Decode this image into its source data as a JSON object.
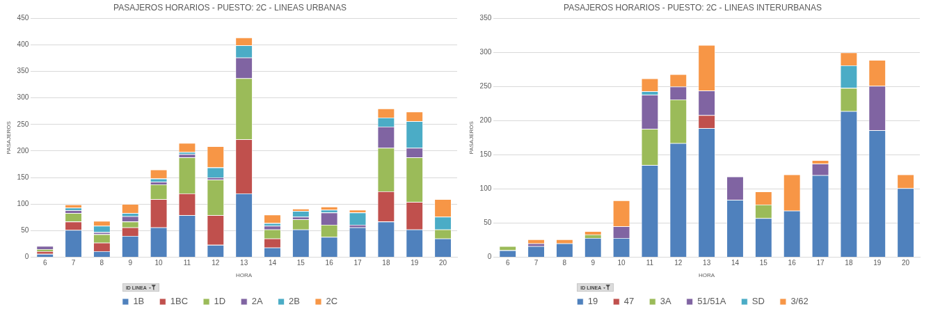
{
  "chart_data": [
    {
      "type": "bar",
      "stacked": true,
      "title": "PASAJEROS HORARIOS - PUESTO: 2C - LINEAS URBANAS",
      "xlabel": "HORA",
      "ylabel": "PASAJEROS",
      "legend_title": "ID LINEA",
      "legend": "bottom",
      "grid": "y",
      "ylim": [
        0,
        450
      ],
      "yticks": [
        0,
        50,
        100,
        150,
        200,
        250,
        300,
        350,
        400,
        450
      ],
      "categories": [
        "6",
        "7",
        "8",
        "9",
        "10",
        "11",
        "12",
        "13",
        "14",
        "15",
        "16",
        "17",
        "18",
        "19",
        "20"
      ],
      "series": [
        {
          "name": "1B",
          "color": "#4f81bd",
          "values": [
            6,
            51,
            11,
            40,
            56,
            79,
            23,
            120,
            18,
            52,
            38,
            56,
            67,
            52,
            35
          ]
        },
        {
          "name": "1BC",
          "color": "#c0504d",
          "values": [
            5,
            16,
            16,
            16,
            53,
            41,
            56,
            102,
            17,
            0,
            0,
            0,
            57,
            52,
            0
          ]
        },
        {
          "name": "1D",
          "color": "#9bbb59",
          "values": [
            4,
            16,
            16,
            11,
            28,
            68,
            67,
            115,
            17,
            19,
            23,
            0,
            82,
            84,
            17
          ]
        },
        {
          "name": "2A",
          "color": "#8064a2",
          "values": [
            6,
            5,
            4,
            10,
            5,
            6,
            4,
            39,
            7,
            5,
            23,
            5,
            40,
            18,
            0
          ]
        },
        {
          "name": "2B",
          "color": "#4bacc6",
          "values": [
            0,
            5,
            12,
            6,
            6,
            4,
            19,
            23,
            5,
            11,
            5,
            23,
            17,
            50,
            24
          ]
        },
        {
          "name": "2C",
          "color": "#f79646",
          "values": [
            0,
            6,
            9,
            17,
            17,
            17,
            40,
            15,
            16,
            4,
            6,
            5,
            17,
            18,
            33
          ]
        }
      ]
    },
    {
      "type": "bar",
      "stacked": true,
      "title": "PASAJEROS HORARIOS - PUESTO: 2C - LINEAS INTERURBANAS",
      "xlabel": "HORA",
      "ylabel": "PASAJEROS",
      "legend_title": "ID LINEA",
      "legend": "bottom",
      "grid": "y",
      "ylim": [
        0,
        350
      ],
      "yticks": [
        0,
        50,
        100,
        150,
        200,
        250,
        300,
        350
      ],
      "categories": [
        "6",
        "7",
        "8",
        "9",
        "10",
        "11",
        "12",
        "13",
        "14",
        "15",
        "16",
        "17",
        "18",
        "19",
        "20"
      ],
      "series": [
        {
          "name": "19",
          "color": "#4f81bd",
          "values": [
            10,
            16,
            20,
            28,
            28,
            135,
            167,
            189,
            84,
            57,
            68,
            120,
            214,
            186,
            101
          ]
        },
        {
          "name": "47",
          "color": "#c0504d",
          "values": [
            0,
            0,
            0,
            0,
            0,
            0,
            0,
            19,
            0,
            0,
            0,
            0,
            0,
            0,
            0
          ]
        },
        {
          "name": "3A",
          "color": "#9bbb59",
          "values": [
            6,
            0,
            0,
            5,
            0,
            53,
            64,
            0,
            0,
            20,
            0,
            0,
            34,
            0,
            0
          ]
        },
        {
          "name": "51/51A",
          "color": "#8064a2",
          "values": [
            0,
            4,
            0,
            0,
            17,
            50,
            19,
            36,
            34,
            0,
            0,
            17,
            0,
            65,
            0
          ]
        },
        {
          "name": "SD",
          "color": "#4bacc6",
          "values": [
            0,
            0,
            0,
            0,
            0,
            5,
            0,
            0,
            0,
            0,
            0,
            0,
            33,
            0,
            0
          ]
        },
        {
          "name": "3/62",
          "color": "#f79646",
          "values": [
            0,
            6,
            6,
            5,
            38,
            19,
            18,
            67,
            0,
            19,
            53,
            5,
            19,
            38,
            20
          ]
        }
      ]
    }
  ]
}
